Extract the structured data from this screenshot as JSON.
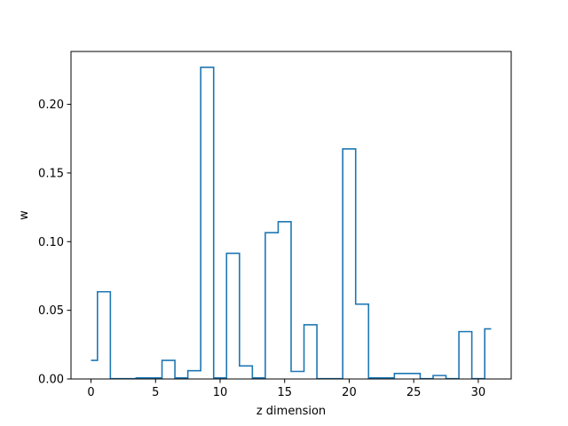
{
  "chart_data": {
    "type": "step",
    "title": "",
    "xlabel": "z dimension",
    "ylabel": "w",
    "xlim": [
      -1.55,
      32.55
    ],
    "ylim": [
      0,
      0.2385
    ],
    "x": [
      0,
      1,
      2,
      3,
      4,
      5,
      6,
      7,
      8,
      9,
      10,
      11,
      12,
      13,
      14,
      15,
      16,
      17,
      18,
      19,
      20,
      21,
      22,
      23,
      24,
      25,
      26,
      27,
      28,
      29,
      30,
      31
    ],
    "values": [
      0.0135,
      0.0635,
      0.0002,
      0.0002,
      0.0008,
      0.0008,
      0.0135,
      0.0008,
      0.006,
      0.227,
      0.0008,
      0.0915,
      0.0095,
      0.0008,
      0.1065,
      0.1145,
      0.0055,
      0.0395,
      0.0002,
      0.0002,
      0.1675,
      0.0545,
      0.0008,
      0.0008,
      0.004,
      0.004,
      0.0002,
      0.0025,
      0.0002,
      0.0345,
      0.0002,
      0.0365
    ],
    "xticks": [
      0,
      5,
      10,
      15,
      20,
      25,
      30
    ],
    "xtick_labels": [
      "0",
      "5",
      "10",
      "15",
      "20",
      "25",
      "30"
    ],
    "yticks": [
      0,
      0.05,
      0.1,
      0.15,
      0.2
    ],
    "ytick_labels": [
      "0.00",
      "0.05",
      "0.10",
      "0.15",
      "0.20"
    ],
    "series_color": "#1f77b4",
    "grid": false
  }
}
